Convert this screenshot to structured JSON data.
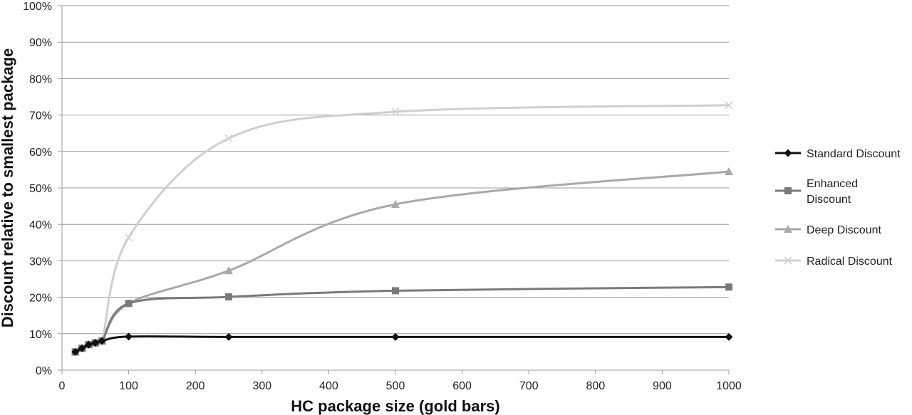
{
  "chart_data": {
    "type": "line",
    "title": "",
    "xlabel": "HC package size (gold bars)",
    "ylabel": "Discount relative to smallest package",
    "xlim": [
      0,
      1000
    ],
    "ylim": [
      0,
      100
    ],
    "x_ticks": [
      0,
      100,
      200,
      300,
      400,
      500,
      600,
      700,
      800,
      900,
      1000
    ],
    "x_tick_labels": [
      "0",
      "100",
      "200",
      "300",
      "400",
      "500",
      "600",
      "700",
      "800",
      "900",
      "1000"
    ],
    "y_ticks": [
      0,
      10,
      20,
      30,
      40,
      50,
      60,
      70,
      80,
      90,
      100
    ],
    "y_tick_labels": [
      "0%",
      "10%",
      "20%",
      "30%",
      "40%",
      "50%",
      "60%",
      "70%",
      "80%",
      "90%",
      "100%"
    ],
    "grid": true,
    "legend_position": "right",
    "x": [
      20,
      30,
      40,
      50,
      60,
      100,
      250,
      500,
      1000
    ],
    "series": [
      {
        "name": "Standard Discount",
        "legend_lines": [
          "Standard Discount"
        ],
        "color": "#111111",
        "marker": "diamond",
        "values": [
          5,
          6,
          7,
          7.5,
          8,
          9.2,
          9.1,
          9.1,
          9.1
        ]
      },
      {
        "name": "Enhanced Discount",
        "legend_lines": [
          "Enhanced",
          "Discount"
        ],
        "color": "#7a7a7a",
        "marker": "square",
        "values": [
          5,
          6,
          7,
          7.5,
          8,
          18.3,
          20.1,
          21.8,
          22.8
        ]
      },
      {
        "name": "Deep Discount",
        "legend_lines": [
          "Deep Discount"
        ],
        "color": "#a9a9a9",
        "marker": "triangle",
        "values": [
          5,
          6,
          7,
          7.5,
          8,
          18.3,
          27.3,
          45.5,
          54.5
        ]
      },
      {
        "name": "Radical Discount",
        "legend_lines": [
          "Radical Discount"
        ],
        "color": "#cfcfcf",
        "marker": "x",
        "values": [
          5,
          6,
          7,
          7.5,
          8,
          36.4,
          63.6,
          70.9,
          72.7
        ]
      }
    ]
  }
}
